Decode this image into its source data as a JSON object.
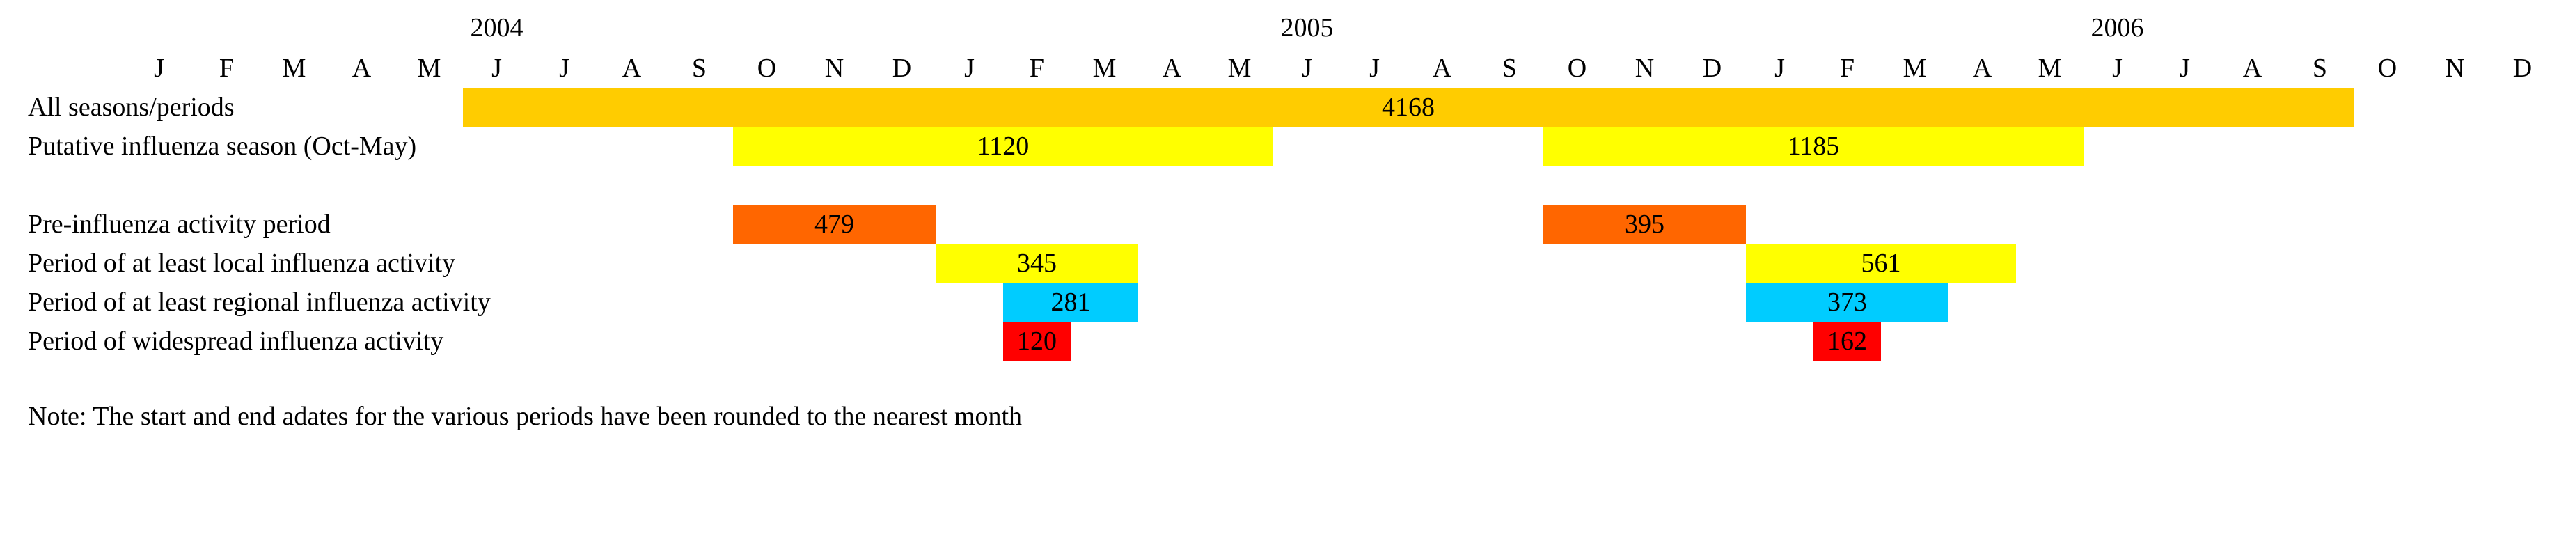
{
  "timeline": {
    "years": [
      {
        "label": "2004",
        "month_index": 5
      },
      {
        "label": "2005",
        "month_index": 17
      },
      {
        "label": "2006",
        "month_index": 29
      }
    ],
    "months": [
      "J",
      "F",
      "M",
      "A",
      "M",
      "J",
      "J",
      "A",
      "S",
      "O",
      "N",
      "D",
      "J",
      "F",
      "M",
      "A",
      "M",
      "J",
      "J",
      "A",
      "S",
      "O",
      "N",
      "D",
      "J",
      "F",
      "M",
      "A",
      "M",
      "J",
      "J",
      "A",
      "S",
      "O",
      "N",
      "D"
    ]
  },
  "rows": [
    {
      "label": "All seasons/periods",
      "slot": 0,
      "bars": [
        {
          "value": "4168",
          "start": "2004-06",
          "end": "2006-09",
          "color": "#FFCC00"
        }
      ]
    },
    {
      "label": "Putative influenza season (Oct-May)",
      "slot": 1,
      "bars": [
        {
          "value": "1120",
          "start": "2004-10",
          "end": "2005-05",
          "color": "#FFFF00"
        },
        {
          "value": "1185",
          "start": "2005-10",
          "end": "2006-05",
          "color": "#FFFF00"
        }
      ]
    },
    {
      "label": "Pre-influenza activity period",
      "slot": 3,
      "bars": [
        {
          "value": "479",
          "start": "2004-10",
          "end": "2004-12",
          "color": "#FF6600"
        },
        {
          "value": "395",
          "start": "2005-10",
          "end": "2005-12",
          "color": "#FF6600"
        }
      ]
    },
    {
      "label": "Period of at least local influenza activity",
      "slot": 4,
      "bars": [
        {
          "value": "345",
          "start": "2005-01",
          "end": "2005-03",
          "color": "#FFFF00"
        },
        {
          "value": "561",
          "start": "2006-01",
          "end": "2006-04",
          "color": "#FFFF00"
        }
      ]
    },
    {
      "label": "Period of at least regional influenza activity",
      "slot": 5,
      "bars": [
        {
          "value": "281",
          "start": "2005-02",
          "end": "2005-03",
          "color": "#00CCFF"
        },
        {
          "value": "373",
          "start": "2006-01",
          "end": "2006-03",
          "color": "#00CCFF"
        }
      ]
    },
    {
      "label": "Period of widespread influenza activity",
      "slot": 6,
      "bars": [
        {
          "value": "120",
          "start": "2005-02",
          "end": "2005-02",
          "color": "#FF0000"
        },
        {
          "value": "162",
          "start": "2006-02",
          "end": "2006-02",
          "color": "#FF0000"
        }
      ]
    }
  ],
  "note": "Note: The start and end adates for the various periods have been rounded to the nearest month"
}
